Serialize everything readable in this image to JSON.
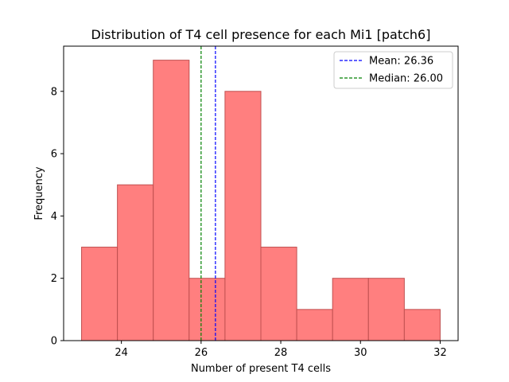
{
  "chart_data": {
    "type": "bar",
    "title": "Distribution of T4 cell presence for each Mi1 [patch6]",
    "xlabel": "Number of present T4 cells",
    "ylabel": "Frequency",
    "bin_edges": [
      23.0,
      23.9,
      24.8,
      25.7,
      26.6,
      27.5,
      28.4,
      29.3,
      30.2,
      31.1,
      32.0
    ],
    "values": [
      3,
      5,
      9,
      2,
      8,
      3,
      1,
      2,
      2,
      1
    ],
    "xlim": [
      22.55,
      32.45
    ],
    "ylim": [
      0,
      9.45
    ],
    "xticks": [
      24,
      26,
      28,
      30,
      32
    ],
    "yticks": [
      0,
      2,
      4,
      6,
      8
    ],
    "bar_color": "#ff7f7f",
    "bar_edge_color": "#c05050",
    "grid": false,
    "lines": [
      {
        "name": "Mean: 26.36",
        "x": 26.36,
        "color": "#0000ff",
        "style": "dashed"
      },
      {
        "name": "Median: 26.00",
        "x": 26.0,
        "color": "#008000",
        "style": "dashed"
      }
    ],
    "legend_position": "top-right"
  }
}
